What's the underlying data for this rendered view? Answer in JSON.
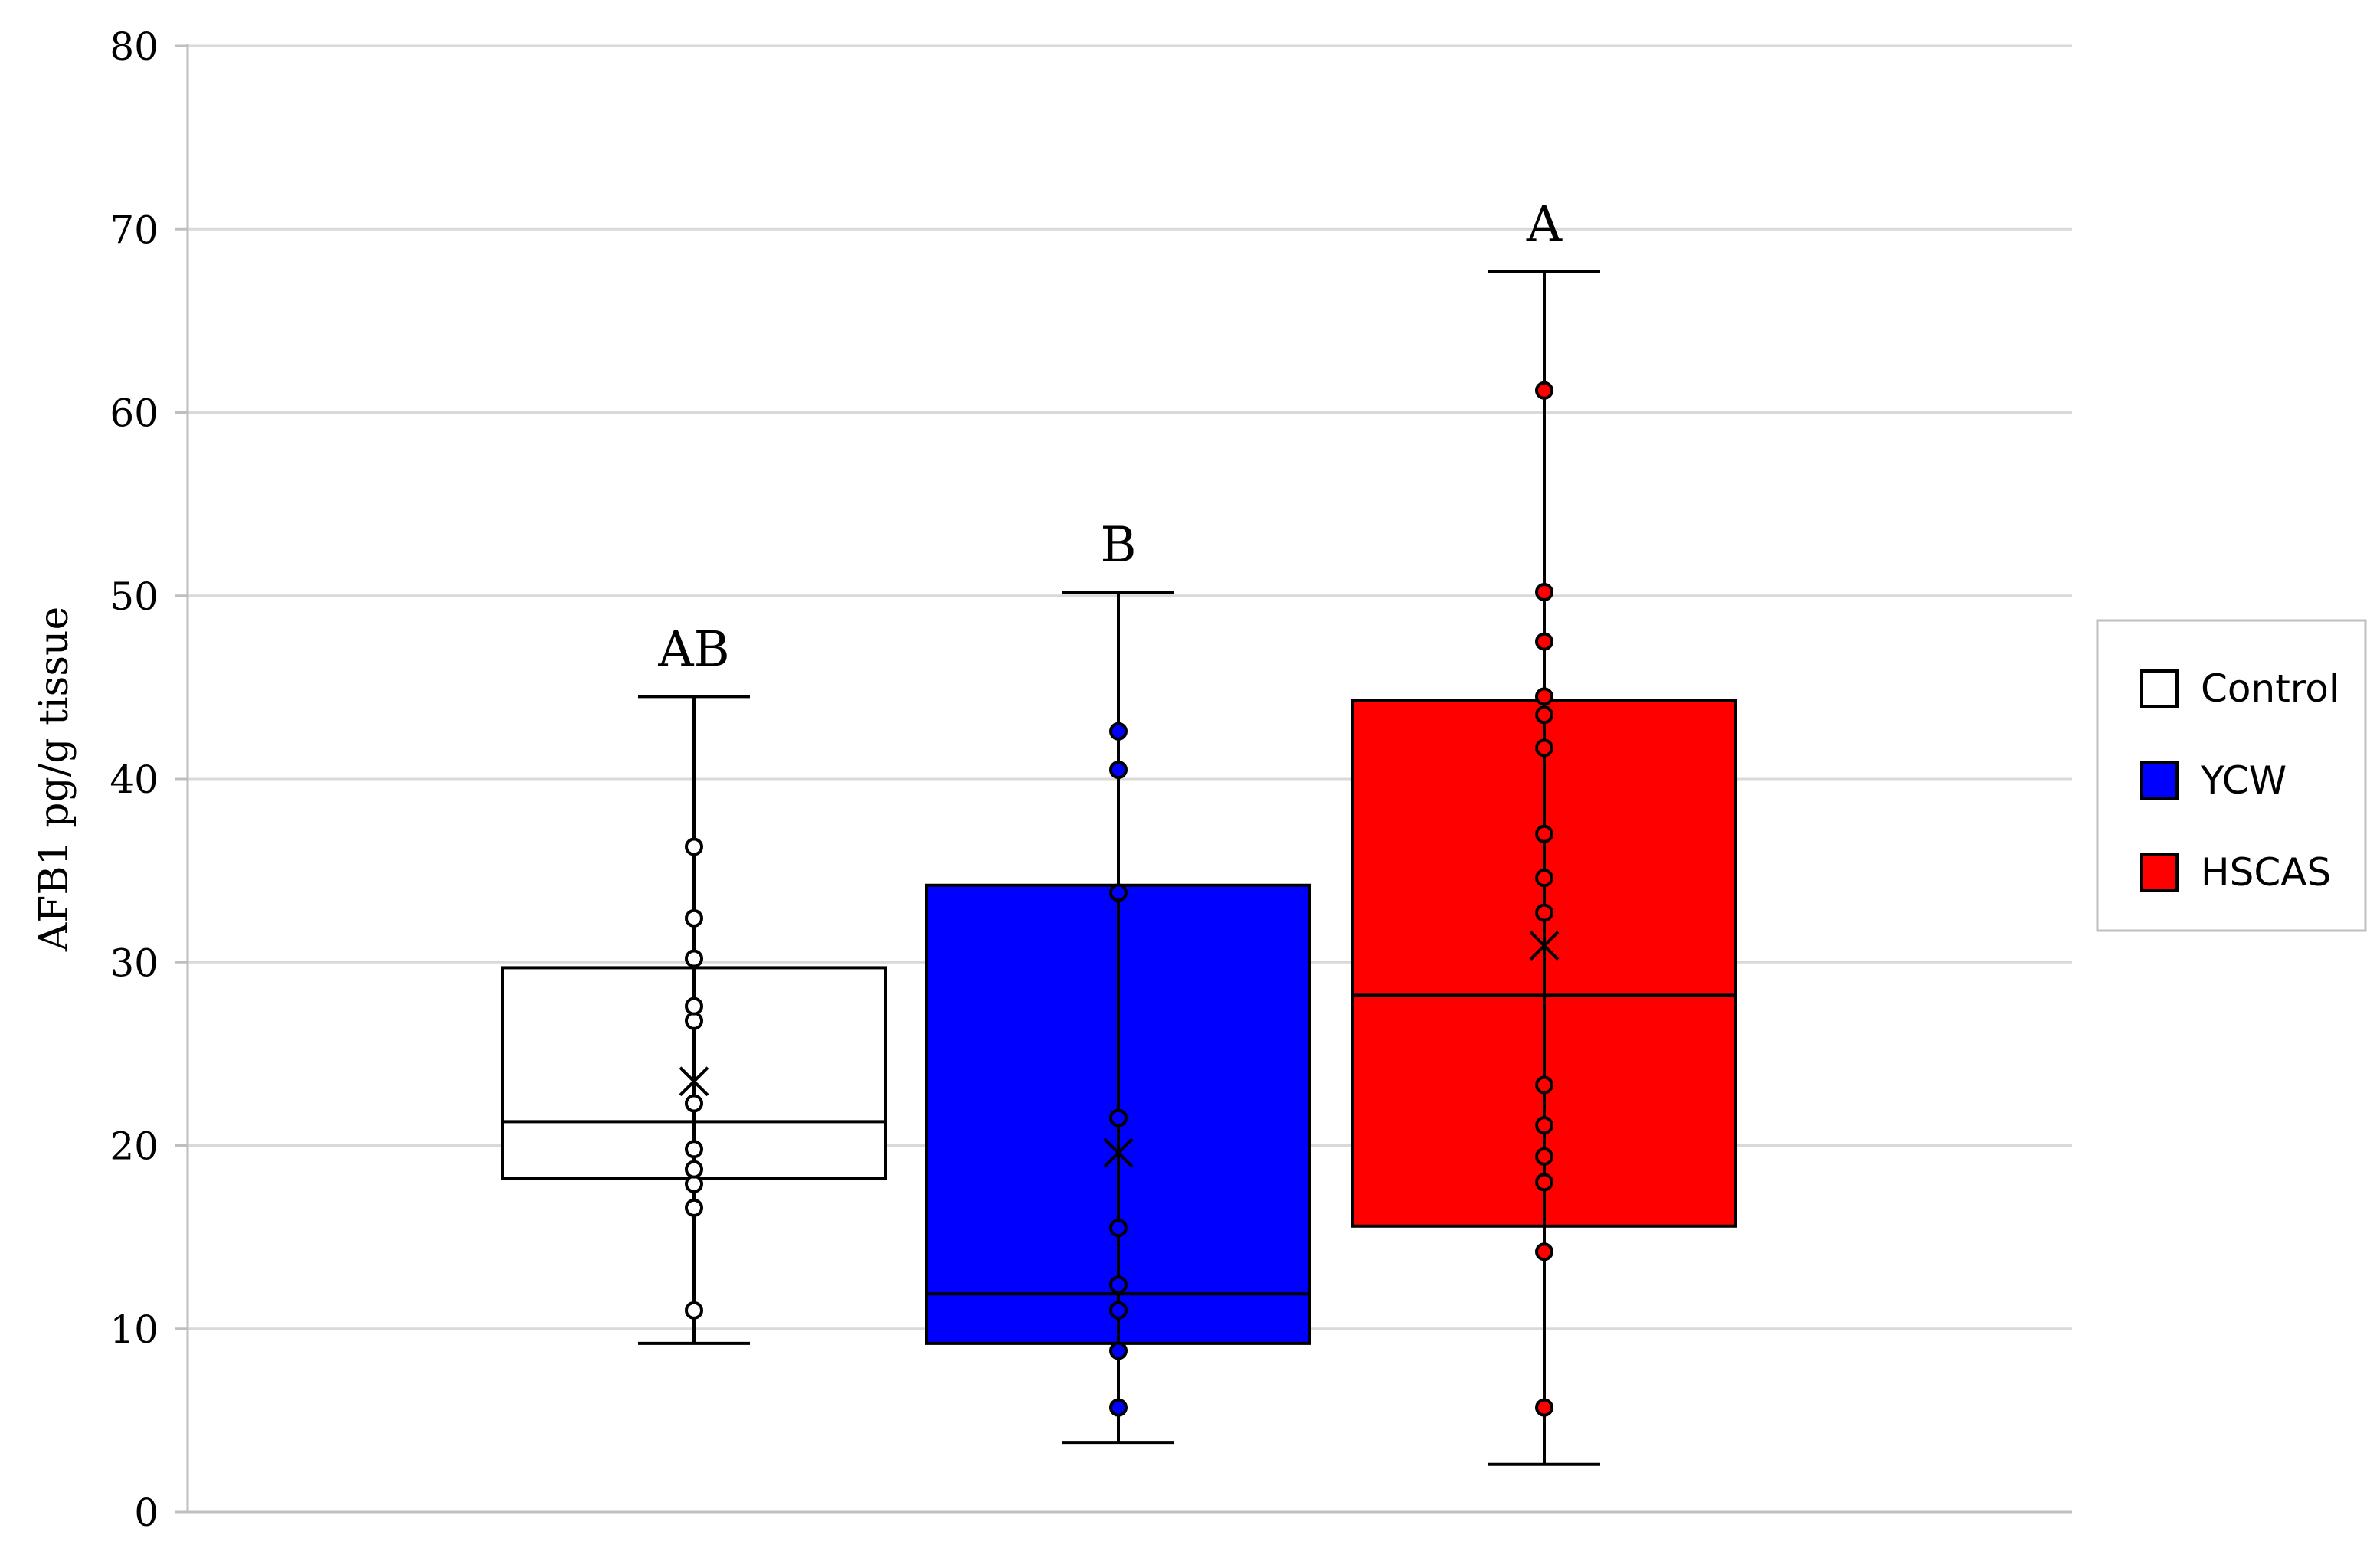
{
  "chart_data": {
    "type": "box",
    "ylabel": "AFB1 pg/g tissue",
    "ylim": [
      0,
      80
    ],
    "yticks": [
      0,
      10,
      20,
      30,
      40,
      50,
      60,
      70,
      80
    ],
    "grid": true,
    "legend": {
      "position": "right",
      "entries": [
        "Control",
        "YCW",
        "HSCAS"
      ]
    },
    "groups": [
      {
        "name": "Control",
        "color": "#ffffff",
        "significance": "AB",
        "whisker_low": 9.2,
        "q1": 18.2,
        "median": 21.3,
        "q3": 29.7,
        "whisker_high": 44.5,
        "mean": 23.5,
        "points": [
          11.0,
          16.6,
          17.9,
          18.7,
          19.8,
          22.3,
          26.8,
          27.6,
          30.2,
          32.4,
          36.3
        ]
      },
      {
        "name": "YCW",
        "color": "#0000ff",
        "significance": "B",
        "whisker_low": 3.8,
        "q1": 9.2,
        "median": 11.9,
        "q3": 34.2,
        "whisker_high": 50.2,
        "mean": 19.6,
        "points": [
          5.7,
          8.8,
          11.0,
          12.4,
          15.5,
          21.5,
          33.8,
          40.5,
          42.6
        ]
      },
      {
        "name": "HSCAS",
        "color": "#ff0000",
        "significance": "A",
        "whisker_low": 2.6,
        "q1": 15.6,
        "median": 28.2,
        "q3": 44.3,
        "whisker_high": 67.7,
        "mean": 30.9,
        "points": [
          5.7,
          14.2,
          18.0,
          19.4,
          21.1,
          23.3,
          32.7,
          34.6,
          37.0,
          41.7,
          43.5,
          44.5,
          47.5,
          50.2,
          61.2
        ]
      }
    ]
  }
}
